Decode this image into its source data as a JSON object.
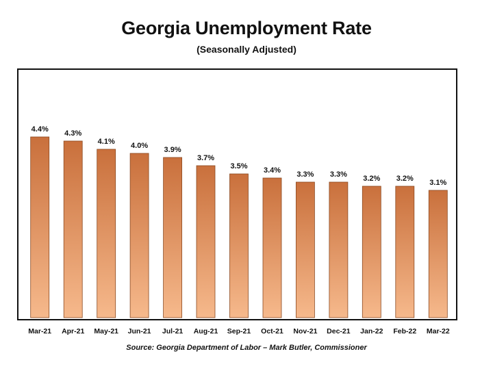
{
  "chart_data": {
    "type": "bar",
    "title": "Georgia Unemployment Rate",
    "subtitle": "(Seasonally Adjusted)",
    "categories": [
      "Mar-21",
      "Apr-21",
      "May-21",
      "Jun-21",
      "Jul-21",
      "Aug-21",
      "Sep-21",
      "Oct-21",
      "Nov-21",
      "Dec-21",
      "Jan-22",
      "Feb-22",
      "Mar-22"
    ],
    "values": [
      4.4,
      4.3,
      4.1,
      4.0,
      3.9,
      3.7,
      3.5,
      3.4,
      3.3,
      3.3,
      3.2,
      3.2,
      3.1
    ],
    "data_labels": [
      "4.4%",
      "4.3%",
      "4.1%",
      "4.0%",
      "3.9%",
      "3.7%",
      "3.5%",
      "3.4%",
      "3.3%",
      "3.3%",
      "3.2%",
      "3.2%",
      "3.1%"
    ],
    "ylim": [
      0,
      4.4
    ],
    "grid": false,
    "colors": {
      "bar_light": "#f6b98c",
      "bar_dark": "#c9703c",
      "bar_edge": "#8a4a22"
    },
    "source": "Source:  Georgia Department of Labor – Mark Butler, Commissioner"
  }
}
